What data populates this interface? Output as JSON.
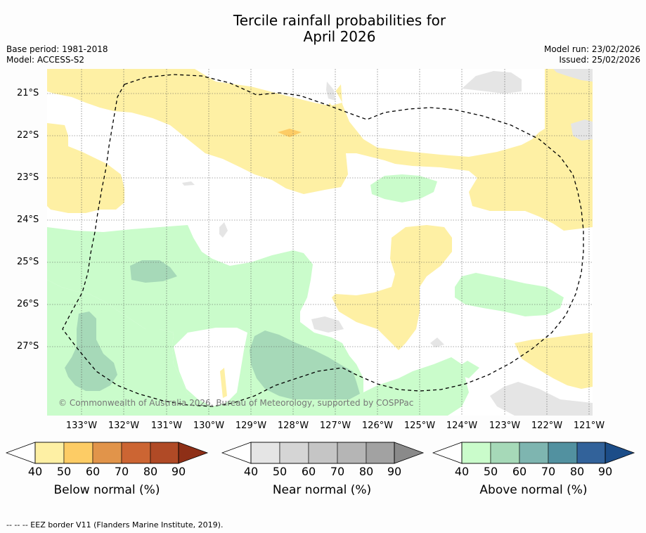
{
  "title": {
    "line1": "Tercile rainfall probabilities for",
    "line2": "April 2026"
  },
  "meta": {
    "base_period": "Base period: 1981-2018",
    "model": "Model: ACCESS-S2",
    "model_run": "Model run: 23/02/2026",
    "issued": "Issued: 25/02/2026"
  },
  "map": {
    "copyright": "© Commonwealth of Australia 2026, Bureau of Meteorology, supported by COSPPac",
    "lat_labels": [
      "21°S",
      "22°S",
      "23°S",
      "24°S",
      "25°S",
      "26°S",
      "27°S"
    ],
    "lon_labels": [
      "133°W",
      "132°W",
      "131°W",
      "130°W",
      "129°W",
      "128°W",
      "127°W",
      "126°W",
      "125°W",
      "124°W",
      "123°W",
      "122°W",
      "121°W"
    ]
  },
  "colorbars": [
    {
      "title": "Below normal (%)",
      "ticks": [
        "40",
        "50",
        "60",
        "70",
        "80",
        "90"
      ],
      "colors": [
        "#fef0a4",
        "#fdcc65",
        "#e1944a",
        "#cc6533",
        "#b04a26",
        "#8e2f17"
      ]
    },
    {
      "title": "Near normal (%)",
      "ticks": [
        "40",
        "50",
        "60",
        "70",
        "80",
        "90"
      ],
      "colors": [
        "#e5e5e5",
        "#d5d5d5",
        "#c5c5c5",
        "#b5b5b5",
        "#a2a2a2",
        "#8a8a8a"
      ]
    },
    {
      "title": "Above normal (%)",
      "ticks": [
        "40",
        "50",
        "60",
        "70",
        "80",
        "90"
      ],
      "colors": [
        "#cafccb",
        "#a6d9b8",
        "#7eb5b0",
        "#5291a0",
        "#32629a",
        "#1c4d88"
      ]
    }
  ],
  "footnote": "--  --  -- EEZ border V11 (Flanders Marine Institute, 2019)."
}
